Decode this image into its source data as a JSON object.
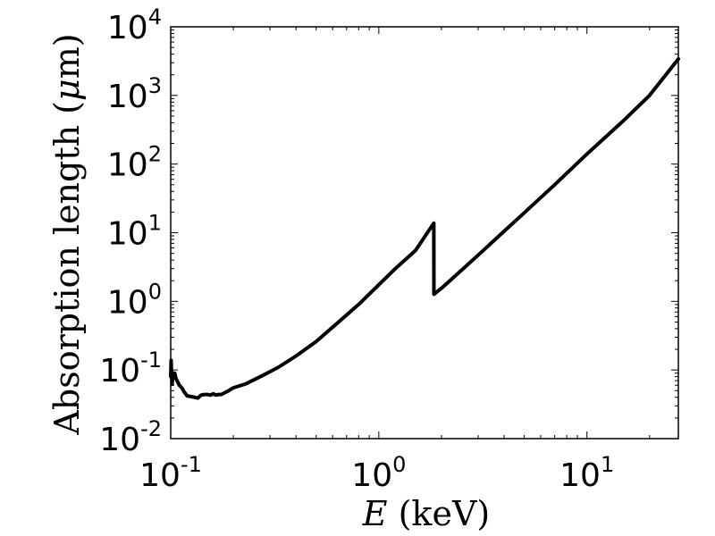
{
  "chart_data": {
    "type": "line",
    "title": "",
    "xlabel_var": "E",
    "xlabel_unit": " (keV)",
    "ylabel_text": "Absorption length (",
    "ylabel_mu": "μ",
    "ylabel_rest": "m)",
    "x_scale": "log",
    "y_scale": "log",
    "xlim": [
      0.1,
      27.5
    ],
    "ylim": [
      0.01,
      10000
    ],
    "grid": false,
    "line_color": "#000000",
    "x_ticks": [
      {
        "value": 0.1,
        "base": "10",
        "exp": "-1"
      },
      {
        "value": 1,
        "base": "10",
        "exp": "0"
      },
      {
        "value": 10,
        "base": "10",
        "exp": "1"
      }
    ],
    "y_ticks": [
      {
        "value": 0.01,
        "base": "10",
        "exp": "-2"
      },
      {
        "value": 0.1,
        "base": "10",
        "exp": "-1"
      },
      {
        "value": 1,
        "base": "10",
        "exp": "0"
      },
      {
        "value": 10,
        "base": "10",
        "exp": "1"
      },
      {
        "value": 100,
        "base": "10",
        "exp": "2"
      },
      {
        "value": 1000,
        "base": "10",
        "exp": "3"
      },
      {
        "value": 10000,
        "base": "10",
        "exp": "4"
      }
    ],
    "series": [
      {
        "x": [
          0.1,
          0.1005,
          0.101,
          0.1015,
          0.102,
          0.103,
          0.1045,
          0.106,
          0.108,
          0.11,
          0.113,
          0.116,
          0.12,
          0.125,
          0.13,
          0.135,
          0.14,
          0.145,
          0.15,
          0.155,
          0.16,
          0.165,
          0.17,
          0.175,
          0.19,
          0.2,
          0.23,
          0.27,
          0.33,
          0.4,
          0.5,
          0.6,
          0.8,
          1.0,
          1.2,
          1.5,
          1.838,
          1.839,
          2.0,
          2.5,
          3.0,
          4.0,
          5.0,
          7.0,
          10.0,
          15.0,
          20.0,
          27.5
        ],
        "y": [
          0.08,
          0.138,
          0.085,
          0.062,
          0.075,
          0.082,
          0.09,
          0.075,
          0.067,
          0.06,
          0.055,
          0.048,
          0.042,
          0.041,
          0.04,
          0.039,
          0.043,
          0.044,
          0.044,
          0.043,
          0.045,
          0.043,
          0.044,
          0.044,
          0.05,
          0.055,
          0.063,
          0.08,
          0.11,
          0.16,
          0.26,
          0.42,
          0.9,
          1.75,
          3.0,
          5.5,
          13.8,
          1.27,
          1.55,
          2.85,
          4.7,
          10.5,
          19.5,
          50,
          140,
          430,
          1000,
          3400
        ]
      }
    ]
  }
}
